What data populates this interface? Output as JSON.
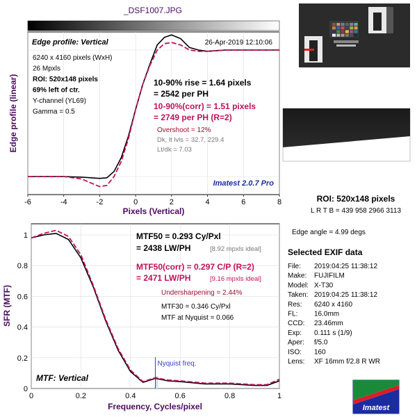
{
  "file_title": "_DSF1007.JPG",
  "top_chart": {
    "panel_title": "Edge profile: Vertical",
    "datetime": "26-Apr-2019 12:10:06",
    "info_lines": [
      {
        "text": "6240 x 4160 pixels (WxH)",
        "bold": false
      },
      {
        "text": "26 Mpxls",
        "bold": false
      },
      {
        "text": "ROI: 520x148 pixels",
        "bold": true
      },
      {
        "text": "69% left of ctr.",
        "bold": true
      },
      {
        "text": "Y-channel  (YL69)",
        "bold": false
      },
      {
        "text": "Gamma = 0.5",
        "bold": false
      }
    ],
    "rise_line1": "10-90% rise = 1.64 pixels",
    "rise_line2": "= 2542 per PH",
    "corr_line1": "10-90%(corr) = 1.51 pixels",
    "corr_line2": "= 2749 per PH  (R=2)",
    "overshoot": "Overshoot = 12%",
    "dk_levels": "Dk, lt lvls = 32.7, 229.4",
    "lt_dk": "Lt/dk = 7.03",
    "version": "Imatest 2.0.7 Pro",
    "xlabel": "Pixels (Vertical)",
    "ylabel": "Edge profile (linear)"
  },
  "bottom_chart": {
    "mtf50_line1": "MTF50 = 0.293 Cy/Pxl",
    "mtf50_line2": "= 2438 LW/PH",
    "mtf50_ideal": "[8.92 mpxls ideal]",
    "mtf50c_line1": "MTF50(corr) = 0.297 C/P  (R=2)",
    "mtf50c_line2": "= 2471 LW/PH",
    "mtf50c_ideal": "[9.16 mpxls ideal]",
    "undersharp": "Undersharpening = 2.44%",
    "mtf30": "MTF30 = 0.346 Cy/Pxl",
    "nyq_text": "MTF at Nyquist = 0.066",
    "nyq_label": "Nyquist freq.",
    "panel_title": "MTF: Vertical",
    "xlabel": "Frequency, Cycles/pixel",
    "ylabel": "SFR (MTF)"
  },
  "roi_panel": {
    "roi_title": "ROI: 520x148 pixels",
    "roi_coords": "L R  T B = 439 958  2966 3113",
    "edge_angle": "Edge angle = 4.99 degs"
  },
  "exif": {
    "title": "Selected EXIF data",
    "rows": [
      {
        "key": "File:",
        "value": "2019:04:25 11:38:12"
      },
      {
        "key": "Make:",
        "value": "FUJIFILM"
      },
      {
        "key": "Model:",
        "value": "X-T30"
      },
      {
        "key": "Taken:",
        "value": "2019:04:25 11:38:12"
      },
      {
        "key": "Res:",
        "value": "6240 x 4160"
      },
      {
        "key": "FL:",
        "value": "16.0mm"
      },
      {
        "key": "CCD:",
        "value": "23.46mm"
      },
      {
        "key": "Exp:",
        "value": "0.111 s  (1/9)"
      },
      {
        "key": "Aper:",
        "value": "f/5.0"
      },
      {
        "key": "ISO:",
        "value": "160"
      },
      {
        "key": "Lens:",
        "value": "XF 16mm f/2.8 R WR"
      }
    ]
  },
  "logo_text": "Imatest",
  "colors": {
    "measured": "#000000",
    "corrected": "#c0105a",
    "nyquist": "#3b3bd6",
    "axis_label": "#4b0a5e",
    "version": "#1a2ca0"
  },
  "chart_data": [
    {
      "type": "line",
      "title": "Edge profile: Vertical",
      "xlabel": "Pixels (Vertical)",
      "ylabel": "Edge profile (linear)",
      "xlim": [
        -6,
        8
      ],
      "x_ticks": [
        -6,
        -4,
        -2,
        0,
        2,
        4,
        6,
        8
      ],
      "y_ticks": [],
      "series": [
        {
          "style": "solid",
          "color": "#000000",
          "x": [
            -6,
            -4,
            -3,
            -2.5,
            -2,
            -1.6,
            -1.2,
            -0.8,
            -0.4,
            0,
            0.4,
            0.8,
            1.2,
            1.6,
            2,
            2.5,
            3,
            3.5,
            4,
            5,
            6,
            7,
            8
          ],
          "y": [
            0.0,
            0.0,
            -0.005,
            -0.01,
            -0.015,
            -0.01,
            0.04,
            0.15,
            0.32,
            0.53,
            0.73,
            0.89,
            1.04,
            1.1,
            1.12,
            1.09,
            1.02,
            1.0,
            0.99,
            1.0,
            1.0,
            1.0,
            1.0
          ]
        },
        {
          "style": "dashed",
          "color": "#c0105a",
          "x": [
            -6,
            -4,
            -3,
            -2.5,
            -2,
            -1.6,
            -1.2,
            -0.8,
            -0.4,
            0,
            0.4,
            0.8,
            1.2,
            1.6,
            2,
            2.5,
            3,
            3.5,
            4,
            5,
            6,
            7,
            8
          ],
          "y": [
            0.0,
            0.0,
            -0.02,
            -0.05,
            -0.08,
            -0.07,
            0.0,
            0.12,
            0.3,
            0.53,
            0.73,
            0.88,
            1.0,
            1.05,
            1.06,
            1.04,
            1.0,
            0.99,
            0.99,
            1.0,
            1.0,
            1.0,
            1.0
          ]
        }
      ]
    },
    {
      "type": "line",
      "title": "MTF: Vertical",
      "xlabel": "Frequency, Cycles/pixel",
      "ylabel": "SFR (MTF)",
      "xlim": [
        0,
        1
      ],
      "ylim": [
        0,
        1.08
      ],
      "x_ticks": [
        0,
        0.2,
        0.4,
        0.6,
        0.8,
        1
      ],
      "y_ticks": [
        0,
        0.2,
        0.4,
        0.6,
        0.8,
        1
      ],
      "nyquist_x": 0.5,
      "series": [
        {
          "style": "solid",
          "color": "#000000",
          "x": [
            0,
            0.05,
            0.1,
            0.15,
            0.2,
            0.25,
            0.3,
            0.35,
            0.4,
            0.45,
            0.5,
            0.55,
            0.6,
            0.7,
            0.8,
            0.9,
            0.95,
            1.0
          ],
          "y": [
            0.98,
            1.0,
            1.01,
            0.97,
            0.85,
            0.66,
            0.44,
            0.25,
            0.11,
            0.04,
            0.066,
            0.05,
            0.045,
            0.03,
            0.03,
            0.02,
            0.02,
            0.05
          ]
        },
        {
          "style": "dashed",
          "color": "#c0105a",
          "x": [
            0,
            0.05,
            0.1,
            0.15,
            0.2,
            0.25,
            0.3,
            0.35,
            0.4,
            0.45,
            0.5,
            0.55,
            0.6,
            0.7,
            0.8,
            0.9,
            0.95,
            1.0
          ],
          "y": [
            0.98,
            1.01,
            1.03,
            0.99,
            0.87,
            0.67,
            0.45,
            0.26,
            0.12,
            0.045,
            0.07,
            0.055,
            0.05,
            0.035,
            0.035,
            0.025,
            0.025,
            0.06
          ]
        }
      ]
    }
  ]
}
